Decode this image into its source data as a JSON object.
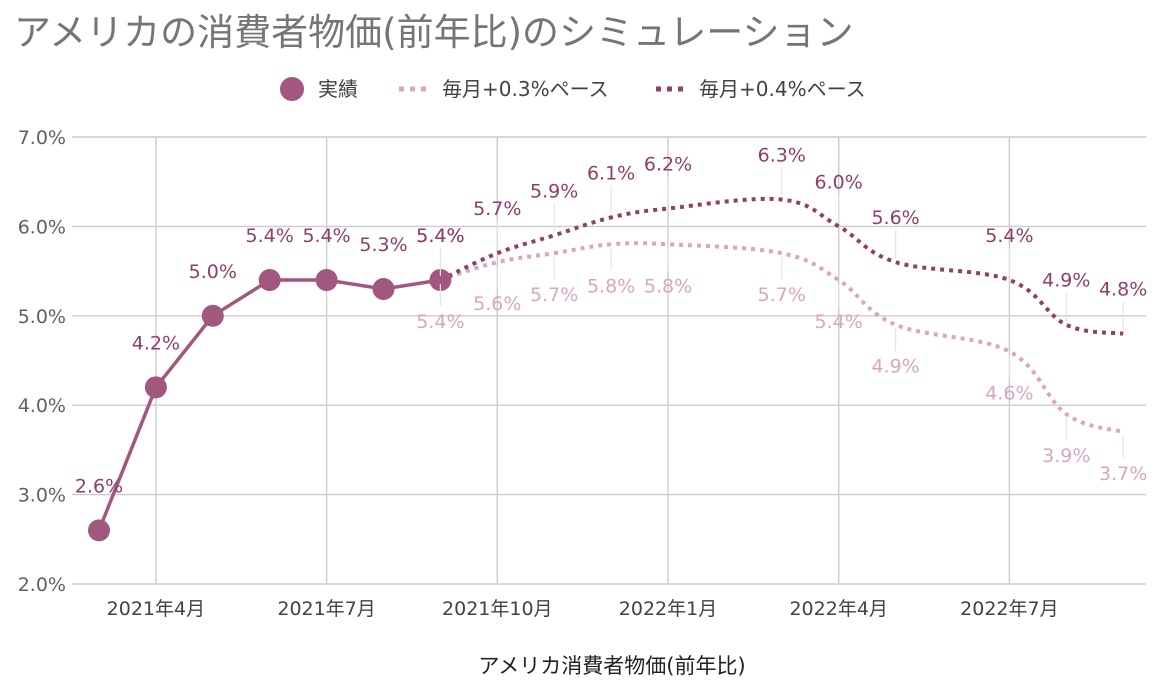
{
  "chart_data": {
    "type": "line",
    "title": "アメリカの消費者物価(前年比)のシミュレーション",
    "xlabel": "アメリカ消費者物価(前年比)",
    "ylabel": "",
    "ylim": [
      2.0,
      7.0
    ],
    "yticks": [
      "2.0%",
      "3.0%",
      "4.0%",
      "5.0%",
      "6.0%",
      "7.0%"
    ],
    "x_tick_labels": [
      "2021年4月",
      "2021年7月",
      "2021年10月",
      "2022年1月",
      "2022年4月",
      "2022年7月"
    ],
    "grid": true,
    "legend_position": "top",
    "colors": {
      "actual": "#a2577f",
      "sim03": "#d8a6c1",
      "sim04": "#8e3f6b",
      "grid": "#cccccc",
      "title": "#757575"
    },
    "months": [
      "2021-03",
      "2021-04",
      "2021-05",
      "2021-06",
      "2021-07",
      "2021-08",
      "2021-09",
      "2021-10",
      "2021-11",
      "2021-12",
      "2022-01",
      "2022-02",
      "2022-03",
      "2022-04",
      "2022-05",
      "2022-06",
      "2022-07",
      "2022-08",
      "2022-09"
    ],
    "series": [
      {
        "name": "実績",
        "style": "solid-markers",
        "values": [
          2.6,
          4.2,
          5.0,
          5.4,
          5.4,
          5.3,
          5.4,
          null,
          null,
          null,
          null,
          null,
          null,
          null,
          null,
          null,
          null,
          null,
          null
        ],
        "labels": [
          "2.6%",
          "4.2%",
          "5.0%",
          "5.4%",
          "5.4%",
          "5.3%",
          "5.4%",
          null,
          null,
          null,
          null,
          null,
          null,
          null,
          null,
          null,
          null,
          null,
          null
        ]
      },
      {
        "name": "毎月+0.3%ペース",
        "style": "dotted",
        "values": [
          null,
          null,
          null,
          null,
          null,
          null,
          5.4,
          5.6,
          5.7,
          5.8,
          5.8,
          null,
          5.7,
          5.4,
          4.9,
          null,
          4.6,
          3.9,
          3.7
        ],
        "labels": [
          null,
          null,
          null,
          null,
          null,
          null,
          "5.4%",
          "5.6%",
          "5.7%",
          "5.8%",
          "5.8%",
          null,
          "5.7%",
          "5.4%",
          "4.9%",
          null,
          "4.6%",
          "3.9%",
          "3.7%"
        ]
      },
      {
        "name": "毎月+0.4%ペース",
        "style": "dotted",
        "values": [
          null,
          null,
          null,
          null,
          null,
          null,
          5.4,
          5.7,
          5.9,
          6.1,
          6.2,
          null,
          6.3,
          6.0,
          5.6,
          null,
          5.4,
          4.9,
          4.8
        ],
        "labels": [
          null,
          null,
          null,
          null,
          null,
          null,
          "5.4%",
          "5.7%",
          "5.9%",
          "6.1%",
          "6.2%",
          null,
          "6.3%",
          "6.0%",
          "5.6%",
          null,
          "5.4%",
          "4.9%",
          "4.8%"
        ]
      }
    ]
  }
}
